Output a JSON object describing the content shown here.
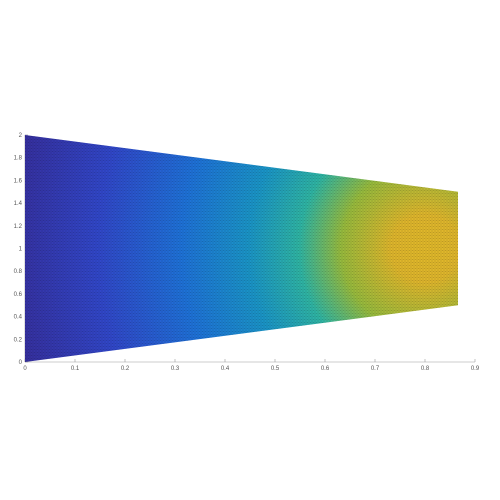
{
  "chart_data": {
    "type": "heatmap",
    "title": "",
    "xlabel": "",
    "ylabel": "",
    "xlim": [
      0,
      0.9
    ],
    "ylim": [
      0,
      2
    ],
    "xticks": [
      "0",
      "0.1",
      "0.2",
      "0.3",
      "0.4",
      "0.5",
      "0.6",
      "0.7",
      "0.8",
      "0.9"
    ],
    "yticks": [
      "0",
      "0.2",
      "0.4",
      "0.6",
      "0.8",
      "1",
      "1.2",
      "1.4",
      "1.6",
      "1.8",
      "2"
    ],
    "grid": false,
    "domain": {
      "shape": "trapezoid",
      "vertices": [
        [
          0,
          0
        ],
        [
          0.866,
          0.5
        ],
        [
          0.866,
          1.5
        ],
        [
          0,
          2
        ]
      ]
    },
    "field": {
      "colormap": "parula",
      "description_values": "value increases from left edge to a maximum near x=0.8, y=1",
      "peak": [
        0.8,
        1.0
      ]
    },
    "mesh": "fine triangular mesh"
  }
}
